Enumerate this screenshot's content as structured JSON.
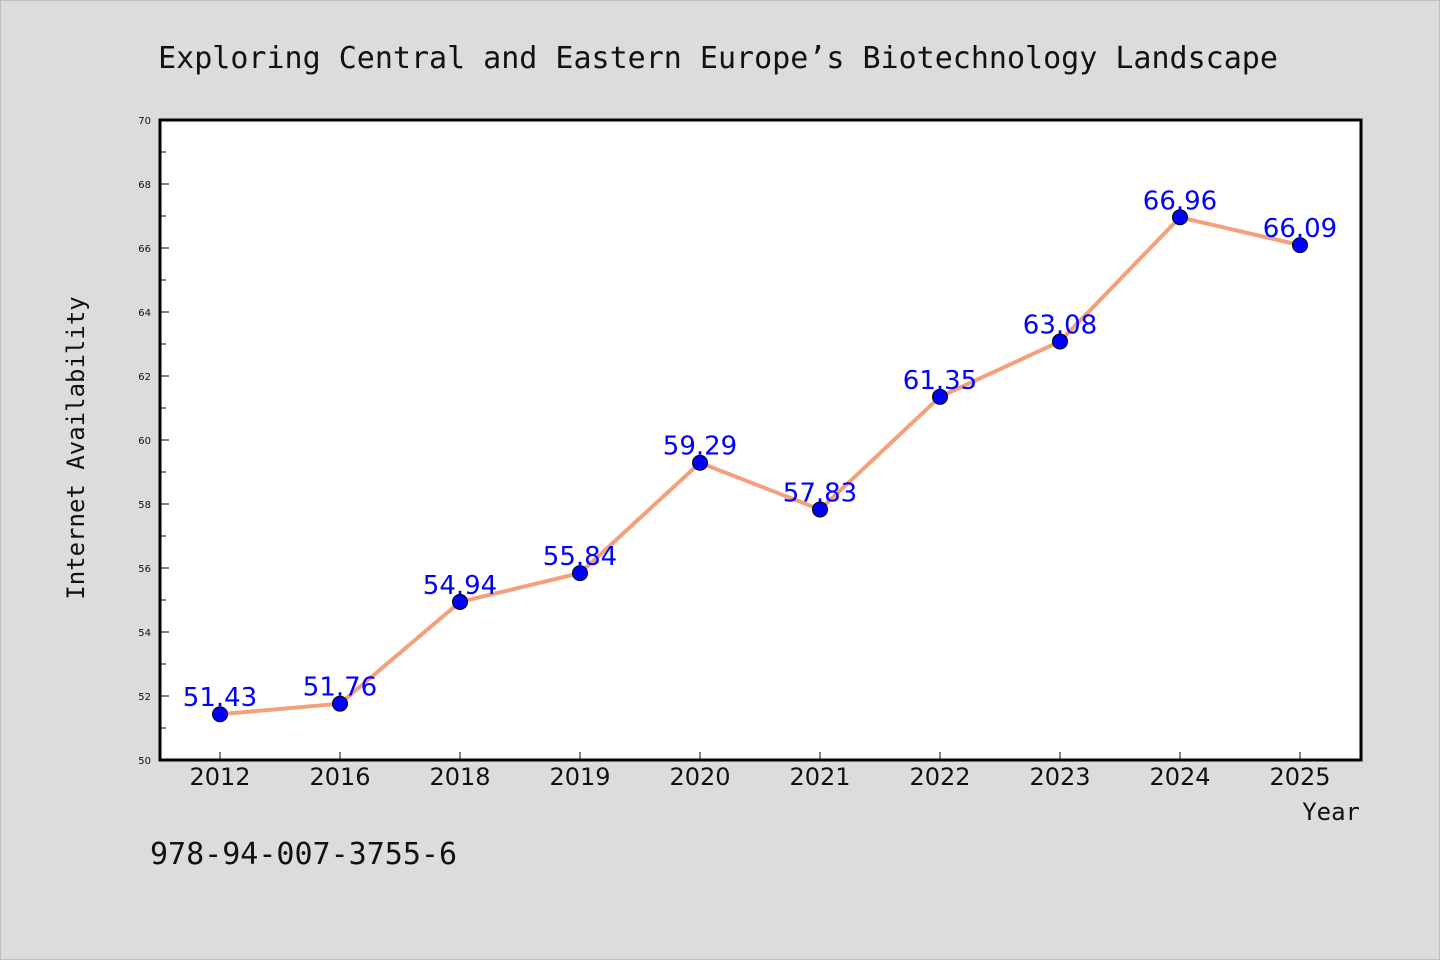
{
  "chart_data": {
    "type": "line",
    "title": "Exploring Central and Eastern Europe’s Biotechnology Landscape",
    "xlabel": "Year",
    "ylabel": "Internet Availability",
    "categories": [
      "2012",
      "2016",
      "2018",
      "2019",
      "2020",
      "2021",
      "2022",
      "2023",
      "2024",
      "2025"
    ],
    "series": [
      {
        "values": [
          51.43,
          51.76,
          54.94,
          55.84,
          59.29,
          57.83,
          61.35,
          63.08,
          66.96,
          66.09
        ],
        "line_color": "#f4a07c",
        "marker_color": "#0000ff"
      }
    ],
    "ylim": [
      50,
      70
    ],
    "yticks": [
      50,
      52,
      54,
      56,
      58,
      60,
      62,
      64,
      66,
      68,
      70
    ],
    "data_label_color": "#0000ff",
    "grid": false,
    "legend": "none"
  },
  "footer": {
    "isbn": "978-94-007-3755-6"
  }
}
